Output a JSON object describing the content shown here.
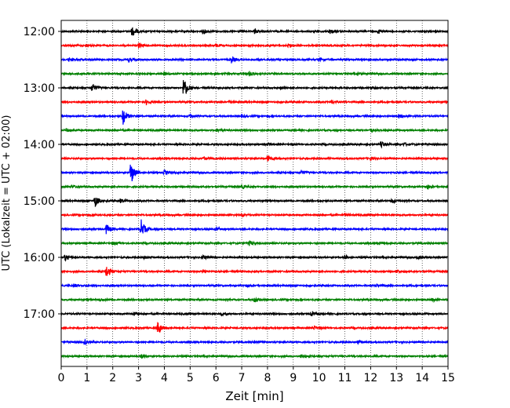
{
  "chart_data": {
    "type": "line",
    "title": "",
    "xlabel": "Zeit  [min]",
    "ylabel": "UTC (Lokalzeit = UTC + 02:00)",
    "xlim": [
      0,
      15
    ],
    "x_ticks": [
      0,
      1,
      2,
      3,
      4,
      5,
      6,
      7,
      8,
      9,
      10,
      11,
      12,
      13,
      14,
      15
    ],
    "x_tick_labels": [
      "0",
      "1",
      "2",
      "3",
      "4",
      "5",
      "6",
      "7",
      "8",
      "9",
      "10",
      "11",
      "12",
      "13",
      "14",
      "15"
    ],
    "y_tick_labels": [
      "12:00",
      "13:00",
      "14:00",
      "15:00",
      "16:00",
      "17:00"
    ],
    "y_tick_rows": [
      0,
      4,
      8,
      12,
      16,
      20
    ],
    "grid": "vertical dotted lines at each minute",
    "row_interval_min": 15,
    "row_colors": [
      "#000000",
      "#ff0000",
      "#0000ff",
      "#008000"
    ],
    "rows": [
      {
        "start": "12:00",
        "events": [
          [
            2.75,
            7
          ],
          [
            5.5,
            3
          ],
          [
            7.5,
            3
          ],
          [
            10.4,
            3
          ],
          [
            12.3,
            3
          ]
        ]
      },
      {
        "start": "12:15",
        "events": [
          [
            3.0,
            3
          ],
          [
            6.0,
            2
          ],
          [
            8.8,
            2
          ]
        ]
      },
      {
        "start": "12:30",
        "events": [
          [
            0.3,
            2
          ],
          [
            2.6,
            3
          ],
          [
            6.6,
            4
          ],
          [
            10.0,
            2
          ]
        ]
      },
      {
        "start": "12:45",
        "events": [
          [
            4.0,
            2
          ],
          [
            7.3,
            3
          ],
          [
            11.5,
            2
          ]
        ]
      },
      {
        "start": "13:00",
        "events": [
          [
            1.2,
            6
          ],
          [
            4.75,
            16
          ],
          [
            8.5,
            2
          ],
          [
            12.0,
            2
          ]
        ]
      },
      {
        "start": "13:15",
        "events": [
          [
            3.3,
            3
          ],
          [
            6.5,
            2
          ],
          [
            10.5,
            2
          ]
        ]
      },
      {
        "start": "13:30",
        "events": [
          [
            2.4,
            11
          ],
          [
            5.0,
            2
          ],
          [
            7.0,
            2
          ],
          [
            13.1,
            2
          ]
        ]
      },
      {
        "start": "13:45",
        "events": [
          [
            0.2,
            2
          ],
          [
            6.0,
            2
          ],
          [
            12.0,
            2
          ]
        ]
      },
      {
        "start": "14:00",
        "events": [
          [
            8.0,
            2
          ],
          [
            12.4,
            4
          ],
          [
            13.3,
            2
          ]
        ]
      },
      {
        "start": "14:15",
        "events": [
          [
            5.5,
            2
          ],
          [
            8.0,
            4
          ],
          [
            12.0,
            2
          ]
        ]
      },
      {
        "start": "14:30",
        "events": [
          [
            2.7,
            16
          ],
          [
            4.0,
            3
          ],
          [
            9.3,
            3
          ]
        ]
      },
      {
        "start": "14:45",
        "events": [
          [
            0.4,
            2
          ],
          [
            7.0,
            2
          ],
          [
            14.2,
            3
          ]
        ]
      },
      {
        "start": "15:00",
        "events": [
          [
            1.3,
            8
          ],
          [
            2.3,
            3
          ],
          [
            12.8,
            3
          ]
        ]
      },
      {
        "start": "15:15",
        "events": [
          [
            1.2,
            2
          ],
          [
            7.0,
            2
          ],
          [
            11.0,
            2
          ]
        ]
      },
      {
        "start": "15:30",
        "events": [
          [
            1.75,
            7
          ],
          [
            3.1,
            12
          ],
          [
            6.0,
            2
          ]
        ]
      },
      {
        "start": "15:45",
        "events": [
          [
            2.0,
            2
          ],
          [
            7.3,
            3
          ],
          [
            12.3,
            2
          ]
        ]
      },
      {
        "start": "16:00",
        "events": [
          [
            0.15,
            4
          ],
          [
            3.2,
            3
          ],
          [
            5.5,
            3
          ],
          [
            11.0,
            3
          ],
          [
            13.8,
            2
          ]
        ]
      },
      {
        "start": "16:15",
        "events": [
          [
            1.75,
            8
          ],
          [
            5.5,
            2
          ],
          [
            13.0,
            2
          ]
        ]
      },
      {
        "start": "16:30",
        "events": [
          [
            0.5,
            2
          ],
          [
            7.2,
            2
          ],
          [
            12.2,
            2
          ]
        ]
      },
      {
        "start": "16:45",
        "events": [
          [
            1.5,
            2
          ],
          [
            7.5,
            3
          ],
          [
            14.4,
            2
          ]
        ]
      },
      {
        "start": "17:00",
        "events": [
          [
            2.8,
            2
          ],
          [
            6.2,
            2
          ],
          [
            9.7,
            3
          ]
        ]
      },
      {
        "start": "17:15",
        "events": [
          [
            3.75,
            8
          ],
          [
            9.8,
            2
          ]
        ]
      },
      {
        "start": "17:30",
        "events": [
          [
            0.9,
            3
          ],
          [
            7.5,
            3
          ],
          [
            11.5,
            2
          ]
        ]
      },
      {
        "start": "17:45",
        "events": [
          [
            3.1,
            3
          ],
          [
            9.3,
            2
          ]
        ]
      }
    ]
  }
}
